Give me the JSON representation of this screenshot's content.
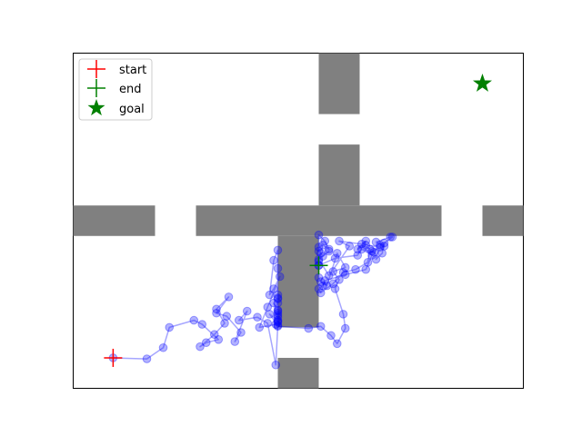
{
  "chart_data": {
    "type": "scatter",
    "title": "",
    "xlabel": "",
    "ylabel": "",
    "axes_visible": false,
    "xlim": [
      0,
      22
    ],
    "ylim": [
      0,
      16.5
    ],
    "grid": false,
    "legend": {
      "placement": "top-left",
      "entries": [
        {
          "label": "start",
          "marker": "plus",
          "color": "#ff0000"
        },
        {
          "label": "end",
          "marker": "plus",
          "color": "#008000"
        },
        {
          "label": "goal",
          "marker": "star",
          "color": "#008000"
        }
      ]
    },
    "obstacles": {
      "color": "#808080",
      "rects": [
        {
          "x0": 12.0,
          "x1": 14.0,
          "y0": 13.5,
          "y1": 16.5
        },
        {
          "x0": 12.0,
          "x1": 14.0,
          "y0": 9.0,
          "y1": 12.0
        },
        {
          "x0": 0.0,
          "x1": 4.0,
          "y0": 7.5,
          "y1": 9.0
        },
        {
          "x0": 6.0,
          "x1": 18.0,
          "y0": 7.5,
          "y1": 9.0
        },
        {
          "x0": 20.0,
          "x1": 22.0,
          "y0": 7.5,
          "y1": 9.0
        },
        {
          "x0": 10.0,
          "x1": 12.0,
          "y0": 3.0,
          "y1": 7.5
        },
        {
          "x0": 10.0,
          "x1": 12.0,
          "y0": 0.0,
          "y1": 1.5
        }
      ]
    },
    "start": {
      "x": 1.95,
      "y": 1.5
    },
    "end": {
      "x": 12.0,
      "y": 6.05
    },
    "goal": {
      "x": 20.0,
      "y": 15.0
    },
    "trajectory": {
      "color": "#0000ff",
      "x": [
        1.95,
        3.6,
        4.4,
        4.7,
        5.9,
        6.3,
        7.1,
        6.5,
        6.2,
        6.9,
        7.4,
        7.0,
        7.6,
        7.0,
        7.5,
        8.2,
        7.9,
        8.5,
        8.1,
        9.0,
        9.5,
        9.9,
        10.0,
        9.6,
        10.0,
        9.8,
        10.0,
        10.0,
        10.0,
        10.0,
        10.0,
        10.0,
        10.0,
        10.0,
        10.0,
        10.0,
        10.0,
        10.0,
        10.0,
        9.8,
        9.6,
        9.8,
        10.1,
        9.5,
        9.1,
        9.9,
        10.0,
        11.5,
        12.1,
        12.6,
        12.9,
        13.3,
        13.2,
        12.8,
        13.0,
        12.7,
        13.3,
        12.9,
        12.4,
        12.1,
        12.0,
        12.0,
        12.0,
        12.1,
        12.0,
        12.2,
        12.5,
        12.3,
        12.0,
        12.0,
        12.2,
        12.5,
        12.0,
        12.5,
        13.5,
        13.0,
        14.1,
        14.5,
        14.4,
        13.8,
        13.2,
        12.7,
        12.1,
        12.0,
        12.2,
        12.3,
        13.3,
        14.3,
        14.6,
        14.1,
        14.7,
        15.0,
        14.8,
        15.1,
        15.2,
        15.6,
        15.5,
        14.8,
        15.2,
        14.6,
        15.0,
        14.3,
        13.9,
        14.3,
        13.9,
        12.8,
        12.0
      ],
      "y": [
        1.5,
        1.45,
        2.0,
        3.0,
        3.35,
        3.15,
        2.4,
        2.25,
        2.05,
        2.65,
        3.2,
        3.9,
        4.5,
        3.7,
        3.55,
        2.75,
        2.3,
        3.8,
        3.35,
        3.5,
        3.2,
        1.15,
        3.1,
        3.65,
        3.35,
        4.2,
        3.85,
        4.45,
        3.7,
        3.5,
        3.25,
        3.3,
        3.6,
        3.8,
        4.2,
        4.4,
        4.6,
        5.9,
        6.8,
        6.3,
        4.6,
        4.9,
        5.5,
        4.0,
        3.0,
        3.15,
        3.05,
        2.95,
        3.05,
        2.6,
        2.2,
        2.95,
        3.65,
        4.9,
        5.35,
        5.75,
        5.95,
        6.65,
        5.05,
        5.25,
        5.45,
        6.05,
        6.25,
        6.65,
        6.95,
        7.05,
        6.85,
        7.25,
        7.55,
        6.75,
        6.5,
        6.75,
        6.35,
        5.55,
        7.0,
        7.25,
        7.1,
        6.85,
        6.2,
        5.85,
        5.7,
        5.15,
        4.7,
        4.9,
        5.05,
        5.3,
        5.6,
        5.85,
        6.55,
        6.85,
        6.7,
        7.05,
        6.35,
        6.65,
        7.15,
        7.45,
        7.45,
        7.2,
        7.0,
        6.75,
        6.95,
        7.05,
        6.85,
        7.25,
        6.55,
        6.4,
        6.05
      ]
    }
  }
}
